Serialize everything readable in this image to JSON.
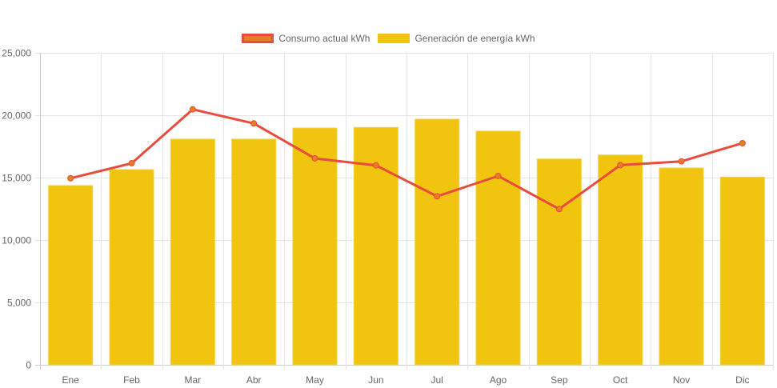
{
  "chart_data": {
    "type": "bar",
    "title": "",
    "xlabel": "",
    "ylabel": "",
    "categories": [
      "Ene",
      "Feb",
      "Mar",
      "Abr",
      "May",
      "Jun",
      "Jul",
      "Ago",
      "Sep",
      "Oct",
      "Nov",
      "Dic"
    ],
    "ylim": [
      0,
      25000
    ],
    "yticks": [
      0,
      5000,
      10000,
      15000,
      20000,
      25000
    ],
    "ytick_labels": [
      "0",
      "5,000",
      "10,000",
      "15,000",
      "20,000",
      "25,000"
    ],
    "grid": true,
    "legend_position": "top",
    "series": [
      {
        "name": "Consumo actual kWh",
        "type": "line",
        "color": "#e74c3c",
        "point_color": "#e67e22",
        "values": [
          14950,
          16150,
          20470,
          19340,
          16540,
          15980,
          13500,
          15130,
          12480,
          16000,
          16300,
          17760
        ]
      },
      {
        "name": "Generación de energía kWh",
        "type": "bar",
        "color": "#f1c40f",
        "values": [
          14360,
          15640,
          18080,
          18080,
          18970,
          19020,
          19680,
          18720,
          16490,
          16810,
          15770,
          15040
        ]
      }
    ]
  },
  "legend": [
    {
      "label": "Consumo actual kWh",
      "fill": "#e67e22",
      "border": "#e74c3c"
    },
    {
      "label": "Generación de energía kWh",
      "fill": "#f1c40f",
      "border": "#f1c40f"
    }
  ]
}
